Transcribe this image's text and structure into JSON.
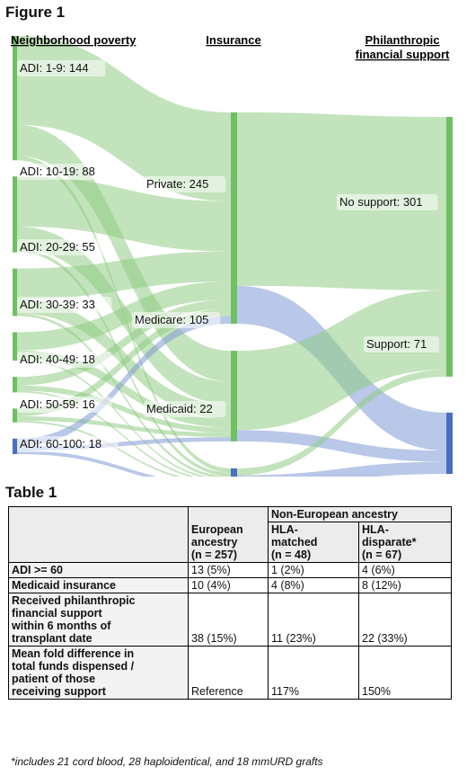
{
  "figure": {
    "title": "Figure 1",
    "columns": [
      "Neighborhood poverty",
      "Insurance",
      "Philanthropic financial support"
    ],
    "column_lines": [
      [
        "Neighborhood poverty"
      ],
      [
        "Insurance"
      ],
      [
        "Philanthropic",
        "financial support"
      ]
    ]
  },
  "chart_data": {
    "type": "sankey",
    "nodes": [
      {
        "id": "adi1",
        "column": 0,
        "label": "ADI: 1-9",
        "value": 144,
        "color": "#6fbf63"
      },
      {
        "id": "adi2",
        "column": 0,
        "label": "ADI: 10-19",
        "value": 88,
        "color": "#6fbf63"
      },
      {
        "id": "adi3",
        "column": 0,
        "label": "ADI: 20-29",
        "value": 55,
        "color": "#6fbf63"
      },
      {
        "id": "adi4",
        "column": 0,
        "label": "ADI: 30-39",
        "value": 33,
        "color": "#6fbf63"
      },
      {
        "id": "adi5",
        "column": 0,
        "label": "ADI: 40-49",
        "value": 18,
        "color": "#6fbf63"
      },
      {
        "id": "adi6",
        "column": 0,
        "label": "ADI: 50-59",
        "value": 16,
        "color": "#6fbf63"
      },
      {
        "id": "adi7",
        "column": 0,
        "label": "ADI: 60-100",
        "value": 18,
        "color": "#4b6fbf"
      },
      {
        "id": "private",
        "column": 1,
        "label": "Private",
        "value": 245,
        "color": "#6fbf63"
      },
      {
        "id": "medicare",
        "column": 1,
        "label": "Medicare",
        "value": 105,
        "color": "#6fbf63"
      },
      {
        "id": "medicaid",
        "column": 1,
        "label": "Medicaid",
        "value": 22,
        "color": "#4b6fbf"
      },
      {
        "id": "nosupport",
        "column": 2,
        "label": "No support",
        "value": 301,
        "color": "#6fbf63"
      },
      {
        "id": "support",
        "column": 2,
        "label": "Support",
        "value": 71,
        "color": "#4b6fbf"
      }
    ],
    "links": [
      {
        "source": "adi1",
        "target": "private",
        "value": 103
      },
      {
        "source": "adi1",
        "target": "medicare",
        "value": 36
      },
      {
        "source": "adi1",
        "target": "medicaid",
        "value": 5
      },
      {
        "source": "adi2",
        "target": "private",
        "value": 58
      },
      {
        "source": "adi2",
        "target": "medicare",
        "value": 26
      },
      {
        "source": "adi2",
        "target": "medicaid",
        "value": 4
      },
      {
        "source": "adi3",
        "target": "private",
        "value": 35
      },
      {
        "source": "adi3",
        "target": "medicare",
        "value": 17
      },
      {
        "source": "adi3",
        "target": "medicaid",
        "value": 3
      },
      {
        "source": "adi4",
        "target": "private",
        "value": 21
      },
      {
        "source": "adi4",
        "target": "medicare",
        "value": 10
      },
      {
        "source": "adi4",
        "target": "medicaid",
        "value": 2
      },
      {
        "source": "adi5",
        "target": "private",
        "value": 10
      },
      {
        "source": "adi5",
        "target": "medicare",
        "value": 6
      },
      {
        "source": "adi5",
        "target": "medicaid",
        "value": 2
      },
      {
        "source": "adi6",
        "target": "private",
        "value": 9
      },
      {
        "source": "adi6",
        "target": "medicare",
        "value": 5
      },
      {
        "source": "adi6",
        "target": "medicaid",
        "value": 2
      },
      {
        "source": "adi7",
        "target": "private",
        "value": 9
      },
      {
        "source": "adi7",
        "target": "medicare",
        "value": 5
      },
      {
        "source": "adi7",
        "target": "medicaid",
        "value": 4
      },
      {
        "source": "private",
        "target": "nosupport",
        "value": 201
      },
      {
        "source": "private",
        "target": "support",
        "value": 44
      },
      {
        "source": "medicare",
        "target": "nosupport",
        "value": 92
      },
      {
        "source": "medicare",
        "target": "support",
        "value": 13
      },
      {
        "source": "medicaid",
        "target": "nosupport",
        "value": 8
      },
      {
        "source": "medicaid",
        "target": "support",
        "value": 14
      }
    ]
  },
  "table": {
    "title": "Table 1",
    "group_header": "Non-European ancestry",
    "col_headers": [
      [
        "European",
        "ancestry",
        "(n = 257)"
      ],
      [
        "HLA-",
        "matched",
        "(n = 48)"
      ],
      [
        "HLA-",
        "disparate*",
        "(n = 67)"
      ]
    ],
    "rows": [
      {
        "label": [
          "ADI >= 60"
        ],
        "cells": [
          "13 (5%)",
          "1 (2%)",
          "4 (6%)"
        ]
      },
      {
        "label": [
          "Medicaid insurance"
        ],
        "cells": [
          "10 (4%)",
          "4 (8%)",
          "8 (12%)"
        ]
      },
      {
        "label": [
          "Received philanthropic",
          "financial support",
          "within 6 months of",
          "transplant date"
        ],
        "cells": [
          "38 (15%)",
          "11 (23%)",
          "22 (33%)"
        ]
      },
      {
        "label": [
          "Mean fold difference in",
          "total funds dispensed /",
          "patient of those",
          "receiving support"
        ],
        "cells": [
          "Reference",
          "117%",
          "150%"
        ]
      }
    ],
    "footnote": "*includes 21 cord blood, 28 haploidentical, and 18 mmURD grafts"
  }
}
